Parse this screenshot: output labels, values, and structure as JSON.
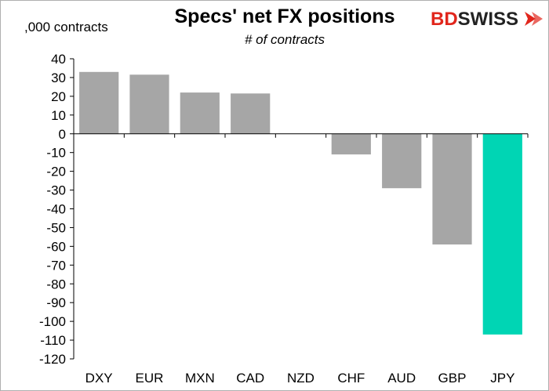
{
  "chart_data": {
    "type": "bar",
    "title": "Specs' net FX positions",
    "subtitle": "# of contracts",
    "ylabel": ",000 contracts",
    "xlabel": "",
    "categories": [
      "DXY",
      "EUR",
      "MXN",
      "CAD",
      "NZD",
      "CHF",
      "AUD",
      "GBP",
      "JPY"
    ],
    "values": [
      33,
      31.5,
      22,
      21.5,
      0,
      -11,
      -29,
      -59,
      -107
    ],
    "highlight": "JPY",
    "ylim": [
      -120,
      40
    ],
    "ytick_step": 10,
    "grid": false,
    "colors": {
      "bar": "#a6a6a6",
      "highlight": "#00d5b4",
      "axis": "#000000"
    }
  },
  "logo": {
    "part1": "BD",
    "part2": "SWISS",
    "color1": "#e1261c",
    "color2": "#222222"
  }
}
